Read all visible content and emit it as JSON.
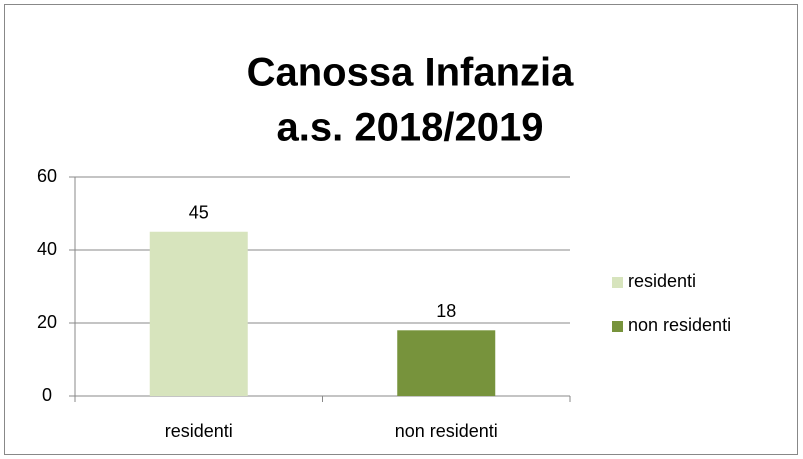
{
  "chart_data": {
    "type": "bar",
    "title": [
      "Canossa Infanzia",
      "a.s. 2018/2019"
    ],
    "categories": [
      "residenti",
      "non residenti"
    ],
    "values": [
      45,
      18
    ],
    "colors": [
      "#d7e4bd",
      "#77933c"
    ],
    "ylim": [
      0,
      60
    ],
    "yticks": [
      0,
      20,
      40,
      60
    ],
    "grid": true,
    "legend": "right"
  }
}
